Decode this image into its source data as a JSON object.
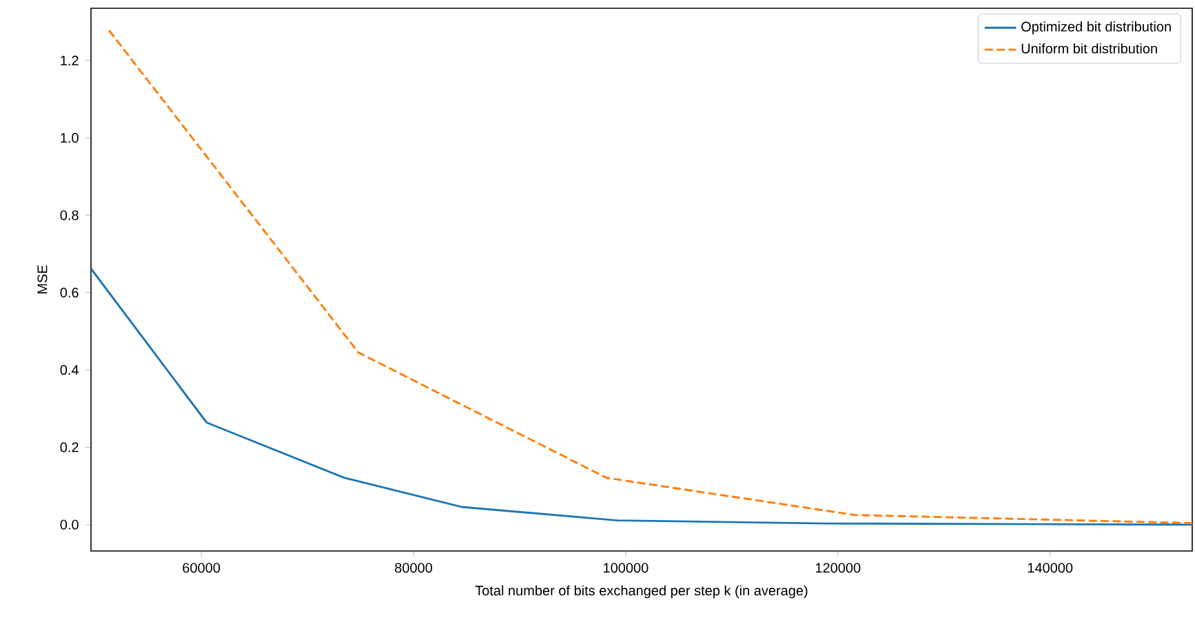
{
  "chart_data": {
    "type": "line",
    "xlabel": "Total number of bits exchanged per step k (in average)",
    "ylabel": "MSE",
    "xlim": [
      49600,
      153400
    ],
    "ylim": [
      -0.068,
      1.335
    ],
    "xticks": [
      60000,
      80000,
      100000,
      120000,
      140000
    ],
    "yticks": [
      {
        "value": 0,
        "label": "0.0"
      },
      {
        "value": 0.2,
        "label": "0.2"
      },
      {
        "value": 0.4,
        "label": "0.4"
      },
      {
        "value": 0.6,
        "label": "0.6"
      },
      {
        "value": 0.8,
        "label": "0.8"
      },
      {
        "value": 1.0,
        "label": "1.0"
      },
      {
        "value": 1.2,
        "label": "1.2"
      }
    ],
    "legend": "top right",
    "series": [
      {
        "name": "Optimized bit distribution",
        "color": "#1f77b4",
        "line_style": "solid",
        "x": [
          49600,
          60500,
          73500,
          84500,
          99200,
          119000,
          153400
        ],
        "values": [
          0.662,
          0.264,
          0.121,
          0.046,
          0.011,
          0.003,
          0.0
        ]
      },
      {
        "name": "Uniform bit distribution",
        "color": "#ff7f0e",
        "line_style": "dashed",
        "x": [
          51300,
          74800,
          98200,
          121600,
          153400
        ],
        "values": [
          1.278,
          0.445,
          0.121,
          0.025,
          0.004
        ]
      }
    ]
  }
}
